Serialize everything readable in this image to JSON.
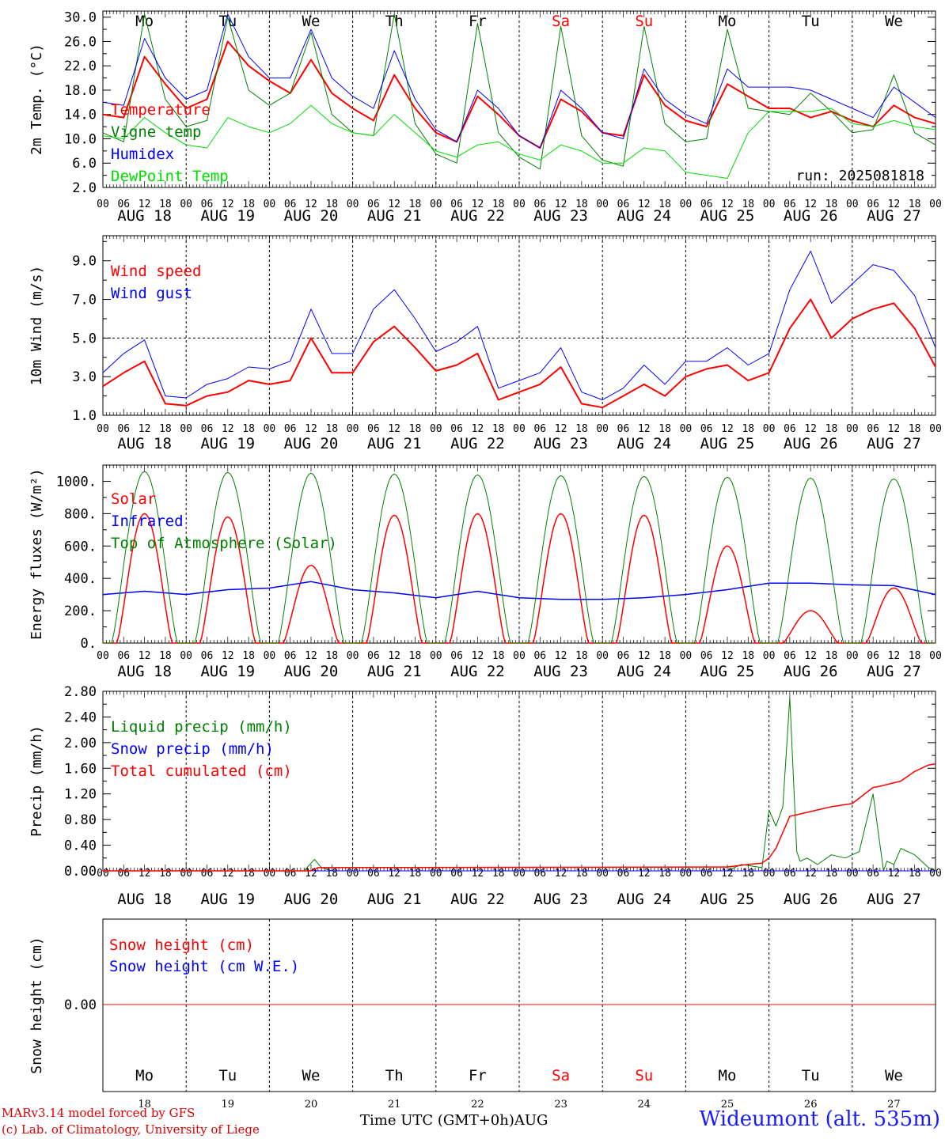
{
  "run_label": "run: 2025081818",
  "days": [
    "Mo",
    "Tu",
    "We",
    "Th",
    "Fr",
    "Sa",
    "Su",
    "Mo",
    "Tu",
    "We"
  ],
  "weekend_indices": [
    5,
    6
  ],
  "dates": [
    "AUG 18",
    "AUG 19",
    "AUG 20",
    "AUG 21",
    "AUG 22",
    "AUG 23",
    "AUG 24",
    "AUG 25",
    "AUG 26",
    "AUG 27"
  ],
  "day_numbers": [
    "18",
    "19",
    "20",
    "21",
    "22",
    "23",
    "24",
    "25",
    "26",
    "27"
  ],
  "hour_ticks": [
    "00",
    "06",
    "12",
    "18"
  ],
  "footer": {
    "model": "MARv3.14 model forced by GFS",
    "lab": "(c) Lab. of Climatology, University of Liege",
    "xlabel": "Time UTC (GMT+0h)",
    "month": "AUG",
    "station": "Wideumont (alt. 535m)"
  },
  "colors": {
    "red": "#ff0000",
    "green": "#008000",
    "blue": "#0000ff",
    "lightgreen": "#00dd00",
    "axis": "#000000"
  },
  "chart_data": [
    {
      "type": "line",
      "ylabel": "2m Temp. (°C)",
      "ylim": [
        2,
        31
      ],
      "yticks": [
        2,
        6,
        10,
        14,
        18,
        22,
        26,
        30
      ],
      "ytick_labels": [
        "2.0",
        "6.0",
        "10.0",
        "14.0",
        "18.0",
        "22.0",
        "26.0",
        "30.0"
      ],
      "x_unit": "hours since AUG 18 00 UTC",
      "legend_placement": "top-left",
      "series": [
        {
          "name": "Temperature",
          "color": "#ff0000",
          "width": 2,
          "x": [
            0,
            6,
            12,
            18,
            24,
            30,
            36,
            42,
            48,
            54,
            60,
            66,
            72,
            78,
            84,
            90,
            96,
            102,
            108,
            114,
            120,
            126,
            132,
            138,
            144,
            150,
            156,
            162,
            168,
            174,
            180,
            186,
            192,
            198,
            204,
            210,
            216,
            222,
            228,
            234,
            240
          ],
          "y": [
            14.0,
            13.5,
            23.5,
            19.0,
            15.0,
            16.5,
            26.0,
            22.0,
            19.5,
            17.5,
            23.0,
            17.5,
            15.0,
            13.0,
            20.5,
            15.0,
            11.0,
            9.5,
            17.0,
            14.0,
            10.5,
            8.5,
            16.5,
            14.5,
            11.0,
            10.5,
            20.5,
            15.5,
            13.0,
            12.0,
            19.0,
            17.0,
            15.0,
            15.0,
            13.5,
            14.5,
            13.0,
            12.0,
            15.5,
            13.5,
            12.5
          ]
        },
        {
          "name": "Vigne temp",
          "color": "#008000",
          "width": 1,
          "x": [
            0,
            6,
            12,
            18,
            24,
            30,
            36,
            42,
            48,
            54,
            60,
            66,
            72,
            78,
            84,
            90,
            96,
            102,
            108,
            114,
            120,
            126,
            132,
            138,
            144,
            150,
            156,
            162,
            168,
            174,
            180,
            186,
            192,
            198,
            204,
            210,
            216,
            222,
            228,
            234,
            240
          ],
          "y": [
            11.0,
            9.5,
            30.5,
            16.5,
            12.0,
            13.0,
            30.0,
            18.0,
            15.5,
            17.5,
            27.5,
            14.0,
            11.0,
            10.5,
            30.5,
            12.5,
            7.5,
            6.0,
            29.0,
            11.0,
            7.0,
            5.0,
            28.5,
            10.5,
            6.5,
            5.5,
            28.5,
            12.5,
            9.5,
            10.0,
            28.0,
            15.0,
            14.5,
            14.0,
            17.5,
            14.5,
            11.0,
            11.5,
            20.5,
            11.0,
            9.0
          ]
        },
        {
          "name": "Humidex",
          "color": "#0000ff",
          "width": 1,
          "x": [
            0,
            6,
            12,
            18,
            24,
            30,
            36,
            42,
            48,
            54,
            60,
            66,
            72,
            78,
            84,
            90,
            96,
            102,
            108,
            114,
            120,
            126,
            132,
            138,
            144,
            150,
            156,
            162,
            168,
            174,
            180,
            186,
            192,
            198,
            204,
            210,
            216,
            222,
            228,
            234,
            240
          ],
          "y": [
            16.0,
            15.5,
            26.5,
            20.0,
            16.5,
            18.0,
            30.5,
            23.5,
            20.0,
            20.0,
            28.0,
            20.0,
            17.0,
            15.0,
            24.5,
            16.5,
            11.5,
            9.5,
            18.0,
            15.0,
            10.5,
            8.5,
            18.0,
            15.0,
            11.0,
            10.0,
            21.5,
            16.5,
            14.0,
            12.5,
            21.5,
            18.5,
            18.5,
            18.5,
            18.0,
            16.5,
            15.0,
            13.5,
            18.5,
            16.0,
            13.5
          ]
        },
        {
          "name": "DewPoint Temp",
          "color": "#00dd00",
          "width": 1,
          "x": [
            0,
            6,
            12,
            18,
            24,
            30,
            36,
            42,
            48,
            54,
            60,
            66,
            72,
            78,
            84,
            90,
            96,
            102,
            108,
            114,
            120,
            126,
            132,
            138,
            144,
            150,
            156,
            162,
            168,
            174,
            180,
            186,
            192,
            198,
            204,
            210,
            216,
            222,
            228,
            234,
            240
          ],
          "y": [
            10.5,
            10.0,
            13.5,
            11.0,
            9.0,
            8.5,
            13.5,
            12.0,
            11.0,
            12.5,
            15.5,
            12.5,
            11.0,
            10.5,
            14.0,
            11.0,
            8.0,
            7.0,
            9.0,
            9.5,
            7.5,
            6.5,
            9.0,
            8.0,
            6.0,
            6.0,
            8.5,
            8.0,
            4.5,
            4.0,
            3.5,
            11.0,
            14.5,
            14.5,
            14.5,
            15.0,
            12.5,
            12.0,
            13.0,
            12.0,
            11.5
          ]
        }
      ]
    },
    {
      "type": "line",
      "ylabel": "10m Wind (m/s)",
      "ylim": [
        1,
        10.3
      ],
      "yticks": [
        1,
        3,
        5,
        7,
        9
      ],
      "ytick_labels": [
        "1.0",
        "3.0",
        "5.0",
        "7.0",
        "9.0"
      ],
      "reference_line": 5.0,
      "x_unit": "hours since AUG 18 00 UTC",
      "legend_placement": "top-left",
      "series": [
        {
          "name": "Wind speed",
          "color": "#ff0000",
          "width": 2,
          "x": [
            0,
            6,
            12,
            18,
            24,
            30,
            36,
            42,
            48,
            54,
            60,
            66,
            72,
            78,
            84,
            90,
            96,
            102,
            108,
            114,
            120,
            126,
            132,
            138,
            144,
            150,
            156,
            162,
            168,
            174,
            180,
            186,
            192,
            198,
            204,
            210,
            216,
            222,
            228,
            234,
            240
          ],
          "y": [
            2.5,
            3.2,
            3.8,
            1.6,
            1.5,
            2.0,
            2.2,
            2.8,
            2.6,
            2.8,
            5.0,
            3.2,
            3.2,
            4.8,
            5.6,
            4.5,
            3.3,
            3.6,
            4.2,
            1.8,
            2.2,
            2.6,
            3.5,
            1.6,
            1.4,
            2.0,
            2.6,
            2.0,
            3.0,
            3.4,
            3.6,
            2.8,
            3.2,
            5.5,
            7.0,
            5.0,
            6.0,
            6.5,
            6.8,
            5.5,
            3.5
          ]
        },
        {
          "name": "Wind gust",
          "color": "#0000ff",
          "width": 1,
          "x": [
            0,
            6,
            12,
            18,
            24,
            30,
            36,
            42,
            48,
            54,
            60,
            66,
            72,
            78,
            84,
            90,
            96,
            102,
            108,
            114,
            120,
            126,
            132,
            138,
            144,
            150,
            156,
            162,
            168,
            174,
            180,
            186,
            192,
            198,
            204,
            210,
            216,
            222,
            228,
            234,
            240
          ],
          "y": [
            3.2,
            4.2,
            4.9,
            2.0,
            1.9,
            2.6,
            2.9,
            3.5,
            3.4,
            3.8,
            6.5,
            4.2,
            4.2,
            6.5,
            7.5,
            6.0,
            4.3,
            4.8,
            5.6,
            2.4,
            2.8,
            3.2,
            4.5,
            2.2,
            1.8,
            2.4,
            3.6,
            2.6,
            3.8,
            3.8,
            4.5,
            3.6,
            4.2,
            7.5,
            9.5,
            6.8,
            7.8,
            8.8,
            8.5,
            7.2,
            4.5
          ]
        }
      ]
    },
    {
      "type": "line",
      "ylabel": "Energy fluxes (W/m²)",
      "ylim": [
        0,
        1100
      ],
      "yticks": [
        0,
        200,
        400,
        600,
        800,
        1000
      ],
      "ytick_labels": [
        "0.",
        "200.",
        "400.",
        "600.",
        "800.",
        "1000."
      ],
      "x_unit": "hours since AUG 18 00 UTC",
      "legend_placement": "top-left",
      "series": [
        {
          "name": "Solar",
          "color": "#ff0000",
          "width": 1.5,
          "peaks": [
            800,
            780,
            480,
            790,
            800,
            800,
            790,
            600,
            200,
            340
          ],
          "sunrise": 4,
          "sunset": 20
        },
        {
          "name": "Infrared",
          "color": "#0000ff",
          "width": 1.5,
          "x": [
            0,
            12,
            24,
            36,
            48,
            60,
            72,
            84,
            96,
            108,
            120,
            132,
            144,
            156,
            168,
            180,
            192,
            204,
            216,
            228,
            240
          ],
          "y": [
            300,
            320,
            300,
            330,
            340,
            380,
            330,
            310,
            280,
            320,
            280,
            270,
            270,
            280,
            300,
            330,
            370,
            370,
            360,
            355,
            300
          ]
        },
        {
          "name": "Top of Atmosphere (Solar)",
          "color": "#008000",
          "width": 1,
          "peaks": [
            1060,
            1055,
            1050,
            1045,
            1040,
            1035,
            1030,
            1025,
            1020,
            1015
          ],
          "sunrise": 2.5,
          "sunset": 21.5
        }
      ]
    },
    {
      "type": "line",
      "ylabel": "Precip (mm/h)",
      "ylim": [
        0,
        2.8
      ],
      "yticks": [
        0,
        0.4,
        0.8,
        1.2,
        1.6,
        2.0,
        2.4,
        2.8
      ],
      "ytick_labels": [
        "0.00",
        "0.40",
        "0.80",
        "1.20",
        "1.60",
        "2.00",
        "2.40",
        "2.80"
      ],
      "x_unit": "hours since AUG 18 00 UTC",
      "legend_placement": "top-left",
      "series": [
        {
          "name": "Liquid precip (mm/h)",
          "color": "#008000",
          "width": 1,
          "x": [
            0,
            58,
            61,
            63,
            66,
            72,
            180,
            184,
            190,
            192,
            194,
            196,
            198,
            200,
            201,
            203,
            206,
            210,
            214,
            218,
            222,
            225,
            226,
            228,
            230,
            234,
            238,
            240
          ],
          "y": [
            0,
            0,
            0.18,
            0.05,
            0,
            0,
            0,
            0.1,
            0.05,
            0.95,
            0.7,
            1.0,
            2.7,
            0.3,
            0.15,
            0.2,
            0.1,
            0.25,
            0.2,
            0.3,
            1.2,
            0.0,
            0.15,
            0.1,
            0.35,
            0.25,
            0.05,
            0.0
          ]
        },
        {
          "name": "Snow precip (mm/h)",
          "color": "#0000ff",
          "width": 1,
          "x": [
            0,
            240
          ],
          "y": [
            0,
            0
          ]
        },
        {
          "name": "Total cumulated (cm)",
          "color": "#ff0000",
          "width": 1.5,
          "x": [
            0,
            60,
            62,
            180,
            186,
            190,
            192,
            194,
            196,
            198,
            210,
            216,
            222,
            224,
            230,
            234,
            238,
            240
          ],
          "y": [
            0,
            0,
            0.05,
            0.06,
            0.1,
            0.12,
            0.2,
            0.35,
            0.6,
            0.85,
            1.0,
            1.05,
            1.3,
            1.32,
            1.4,
            1.55,
            1.65,
            1.67
          ]
        }
      ]
    },
    {
      "type": "line",
      "ylabel": "Snow height (cm)",
      "ytick_labels": [
        "0.00"
      ],
      "x_unit": "hours since AUG 18 00 UTC",
      "legend_placement": "top-left",
      "series": [
        {
          "name": "Snow height (cm)",
          "color": "#ff0000",
          "width": 1,
          "x": [
            0,
            240
          ],
          "y": [
            0,
            0
          ]
        },
        {
          "name": "Snow height (cm W.E.)",
          "color": "#0000ff",
          "width": 1,
          "x": [
            0,
            240
          ],
          "y": [
            0,
            0
          ]
        }
      ]
    }
  ]
}
